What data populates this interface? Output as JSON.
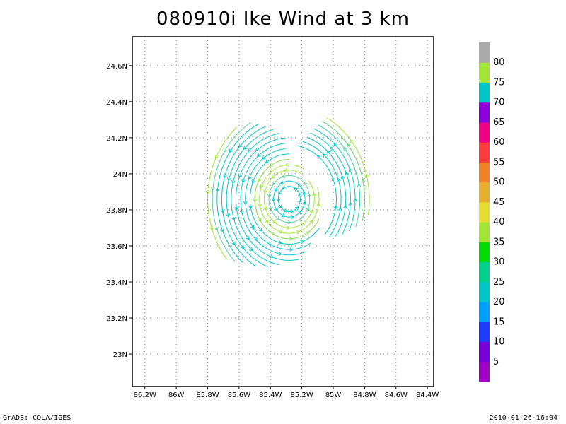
{
  "title": "080910i Ike Wind at 3 km",
  "footer": {
    "left": "GrADS: COLA/IGES",
    "right": "2010-01-26-16:04"
  },
  "axes": {
    "lon_ticks": [
      "86.2W",
      "86W",
      "85.8W",
      "85.6W",
      "85.4W",
      "85.2W",
      "85W",
      "84.8W",
      "84.6W",
      "84.4W"
    ],
    "lon_values": [
      -86.2,
      -86.0,
      -85.8,
      -85.6,
      -85.4,
      -85.2,
      -85.0,
      -84.8,
      -84.6,
      -84.4
    ],
    "lat_ticks": [
      "23N",
      "23.2N",
      "23.4N",
      "23.6N",
      "23.8N",
      "24N",
      "24.2N",
      "24.4N",
      "24.6N"
    ],
    "lat_values": [
      23.0,
      23.2,
      23.4,
      23.6,
      23.8,
      24.0,
      24.2,
      24.4,
      24.6
    ],
    "lon_range": [
      -86.28,
      -84.36
    ],
    "lat_range": [
      22.82,
      24.76
    ],
    "grid": true
  },
  "colorbar": {
    "labels": [
      "5",
      "10",
      "15",
      "20",
      "25",
      "30",
      "35",
      "40",
      "45",
      "50",
      "55",
      "60",
      "65",
      "70",
      "75",
      "80"
    ],
    "colors": [
      "#a000c8",
      "#7b00d8",
      "#1e3cff",
      "#00a0ff",
      "#00c8c8",
      "#00d28c",
      "#00dc00",
      "#a0e632",
      "#e6dc32",
      "#e6af2d",
      "#f08228",
      "#fa3c3c",
      "#f00082",
      "#8c00dc",
      "#00c8c8",
      "#a0e632",
      "#aaaaaa"
    ]
  },
  "map_data": {
    "type": "wind-vector-field",
    "center": {
      "lon": -85.28,
      "lat": 23.86
    },
    "rings": [
      {
        "r": 0.07,
        "start": 80,
        "end": 440,
        "color": "#00c8c8"
      },
      {
        "r": 0.1,
        "start": 80,
        "end": 440,
        "color": "#00c8c8"
      },
      {
        "r": 0.13,
        "start": 70,
        "end": 430,
        "color": "#5fd09c"
      },
      {
        "r": 0.16,
        "start": 60,
        "end": 400,
        "color": "#a0e632"
      },
      {
        "r": 0.19,
        "start": 60,
        "end": 380,
        "color": "#a0e632"
      },
      {
        "r": 0.22,
        "start": 90,
        "end": 330,
        "color": "#8cd84a"
      },
      {
        "r": 0.25,
        "start": 90,
        "end": 320,
        "color": "#00c8c8"
      },
      {
        "r": 0.28,
        "start": 95,
        "end": 300,
        "color": "#00c8c8"
      },
      {
        "r": 0.31,
        "start": 95,
        "end": 290,
        "color": "#00c8c8"
      },
      {
        "r": 0.34,
        "start": 95,
        "end": 280,
        "color": "#00c8c8"
      },
      {
        "r": 0.37,
        "start": 100,
        "end": 260,
        "color": "#00c8c8"
      },
      {
        "r": 0.4,
        "start": 105,
        "end": 250,
        "color": "#00c8c8"
      },
      {
        "r": 0.43,
        "start": 110,
        "end": 240,
        "color": "#00c8c8"
      },
      {
        "r": 0.46,
        "start": 115,
        "end": 230,
        "color": "#00c8c8"
      },
      {
        "r": 0.49,
        "start": 120,
        "end": 225,
        "color": "#5fd09c"
      },
      {
        "r": 0.52,
        "start": 130,
        "end": 220,
        "color": "#a0e632"
      },
      {
        "r": 0.3,
        "start": -40,
        "end": 80,
        "color": "#00c8c8"
      },
      {
        "r": 0.33,
        "start": -40,
        "end": 75,
        "color": "#00c8c8"
      },
      {
        "r": 0.36,
        "start": -35,
        "end": 72,
        "color": "#00c8c8"
      },
      {
        "r": 0.39,
        "start": -30,
        "end": 70,
        "color": "#00c8c8"
      },
      {
        "r": 0.42,
        "start": -25,
        "end": 68,
        "color": "#00c8c8"
      },
      {
        "r": 0.45,
        "start": -20,
        "end": 66,
        "color": "#30d0a0"
      },
      {
        "r": 0.48,
        "start": -15,
        "end": 64,
        "color": "#60d070"
      },
      {
        "r": 0.51,
        "start": -10,
        "end": 62,
        "color": "#a0e632"
      }
    ]
  }
}
